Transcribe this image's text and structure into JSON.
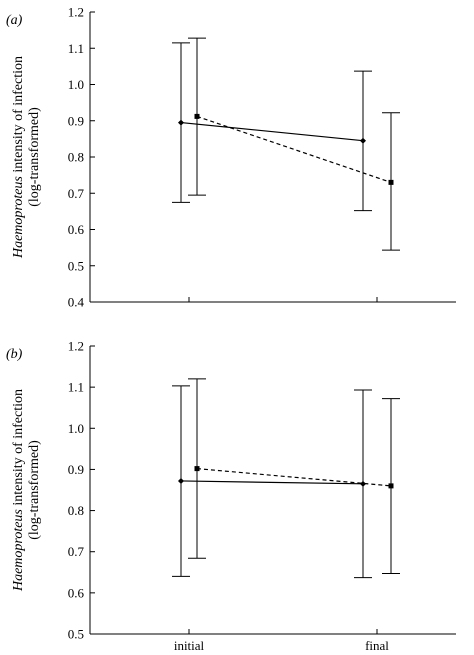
{
  "chart_data": [
    {
      "type": "line",
      "panel_label": "(a)",
      "categories": [
        "initial",
        "final"
      ],
      "ylabel_italic": "Haemoproteus",
      "ylabel_rest": " intensity of infection",
      "ylabel_line2": "(log-transformed)",
      "ylim": [
        0.4,
        1.2
      ],
      "yticks": [
        "0.4",
        "0.5",
        "0.6",
        "0.7",
        "0.8",
        "0.9",
        "1.0",
        "1.1",
        "1.2"
      ],
      "xtick_labels": [
        "",
        ""
      ],
      "series": [
        {
          "style": "solid",
          "marker": "diamond",
          "values": [
            0.895,
            0.845
          ],
          "lower": [
            0.675,
            0.652
          ],
          "upper": [
            1.115,
            1.037
          ]
        },
        {
          "style": "dashed",
          "marker": "square",
          "values": [
            0.912,
            0.73
          ],
          "lower": [
            0.695,
            0.543
          ],
          "upper": [
            1.128,
            0.922
          ]
        }
      ]
    },
    {
      "type": "line",
      "panel_label": "(b)",
      "categories": [
        "initial",
        "final"
      ],
      "ylabel_italic": "Haemoproteus",
      "ylabel_rest": " intensity of infection",
      "ylabel_line2": "(log-transformed)",
      "ylim": [
        0.5,
        1.2
      ],
      "yticks": [
        "0.5",
        "0.6",
        "0.7",
        "0.8",
        "0.9",
        "1.0",
        "1.1",
        "1.2"
      ],
      "xtick_labels": [
        "initial",
        "final"
      ],
      "series": [
        {
          "style": "solid",
          "marker": "diamond",
          "values": [
            0.872,
            0.865
          ],
          "lower": [
            0.64,
            0.637
          ],
          "upper": [
            1.103,
            1.093
          ]
        },
        {
          "style": "dashed",
          "marker": "square",
          "values": [
            0.902,
            0.86
          ],
          "lower": [
            0.684,
            0.647
          ],
          "upper": [
            1.12,
            1.072
          ]
        }
      ]
    }
  ]
}
